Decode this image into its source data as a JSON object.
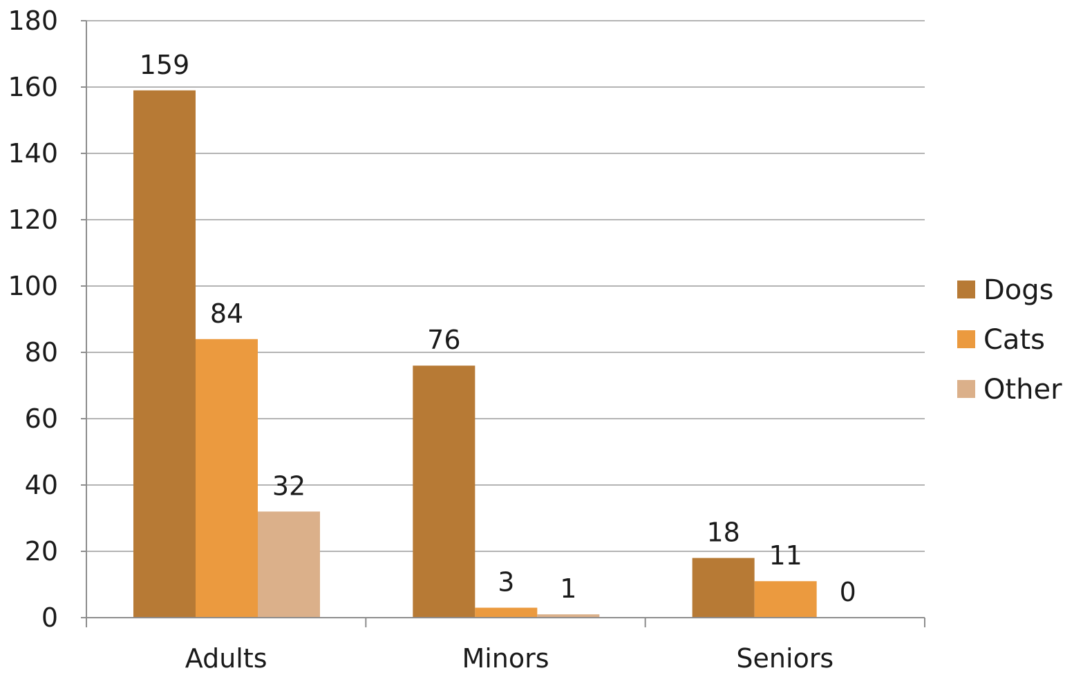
{
  "chart_data": {
    "type": "bar",
    "categories": [
      "Adults",
      "Minors",
      "Seniors"
    ],
    "series": [
      {
        "name": "Dogs",
        "color": "#b77a35",
        "values": [
          159,
          76,
          18
        ],
        "labels": [
          "159",
          "76",
          "18"
        ]
      },
      {
        "name": "Cats",
        "color": "#eb9a3f",
        "values": [
          84,
          3,
          11
        ],
        "labels": [
          "84",
          "3",
          "11"
        ]
      },
      {
        "name": "Other",
        "color": "#dbb08a",
        "values": [
          32,
          1,
          0
        ],
        "labels": [
          "32",
          "1",
          "0"
        ]
      }
    ],
    "ylim": [
      0,
      180
    ],
    "yticks": [
      0,
      20,
      40,
      60,
      80,
      100,
      120,
      140,
      160,
      180
    ],
    "ytick_labels": [
      "0",
      "20",
      "40",
      "60",
      "80",
      "100",
      "120",
      "140",
      "160",
      "180"
    ],
    "grid": true,
    "legend": "right",
    "title": "",
    "xlabel": "",
    "ylabel": ""
  }
}
